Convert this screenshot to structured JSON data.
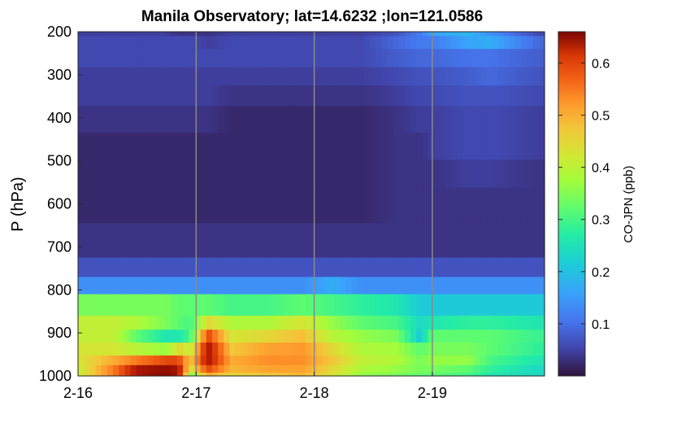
{
  "chart_data": {
    "type": "heatmap",
    "title": "Manila Observatory; lat=14.6232 ;lon=121.0586",
    "xlabel": "",
    "ylabel": "P (hPa)",
    "x_ticks": [
      "2-16",
      "2-17",
      "2-18",
      "2-19"
    ],
    "x_range_days": [
      0,
      3.95
    ],
    "y_ticks": [
      200,
      300,
      400,
      500,
      600,
      700,
      800,
      900,
      1000
    ],
    "ylim": [
      200,
      1000
    ],
    "y_reversed": true,
    "grid": "vertical lines at day ticks",
    "colorbar": {
      "label": "CO-JPN (ppb)",
      "ticks": [
        0.1,
        0.2,
        0.3,
        0.4,
        0.5,
        0.6
      ],
      "range": [
        0,
        0.66
      ],
      "colormap": "turbo"
    },
    "pressure_levels": [
      200,
      220,
      260,
      305,
      345,
      400,
      470,
      525,
      600,
      690,
      760,
      780,
      840,
      880,
      905,
      940,
      965,
      985,
      1000
    ],
    "profiles": [
      {
        "time": 0.0,
        "values": [
          0.04,
          0.05,
          0.05,
          0.04,
          0.04,
          0.03,
          0.02,
          0.02,
          0.02,
          0.03,
          0.06,
          0.12,
          0.3,
          0.36,
          0.36,
          0.38,
          0.38,
          0.36,
          0.36
        ]
      },
      {
        "time": 0.3,
        "values": [
          0.04,
          0.05,
          0.05,
          0.04,
          0.04,
          0.03,
          0.02,
          0.02,
          0.02,
          0.03,
          0.06,
          0.12,
          0.3,
          0.36,
          0.36,
          0.38,
          0.45,
          0.5,
          0.5
        ]
      },
      {
        "time": 0.5,
        "values": [
          0.04,
          0.05,
          0.05,
          0.04,
          0.04,
          0.03,
          0.02,
          0.02,
          0.02,
          0.03,
          0.06,
          0.12,
          0.3,
          0.34,
          0.28,
          0.35,
          0.5,
          0.62,
          0.62
        ]
      },
      {
        "time": 0.75,
        "values": [
          0.04,
          0.05,
          0.05,
          0.04,
          0.04,
          0.03,
          0.02,
          0.02,
          0.02,
          0.03,
          0.06,
          0.12,
          0.3,
          0.3,
          0.22,
          0.32,
          0.55,
          0.64,
          0.65
        ]
      },
      {
        "time": 0.85,
        "values": [
          0.03,
          0.05,
          0.05,
          0.04,
          0.04,
          0.03,
          0.02,
          0.02,
          0.02,
          0.03,
          0.06,
          0.12,
          0.28,
          0.28,
          0.22,
          0.4,
          0.55,
          0.62,
          0.62
        ]
      },
      {
        "time": 0.95,
        "values": [
          0.03,
          0.05,
          0.05,
          0.04,
          0.04,
          0.03,
          0.02,
          0.02,
          0.02,
          0.03,
          0.06,
          0.12,
          0.28,
          0.26,
          0.26,
          0.36,
          0.42,
          0.38,
          0.3
        ]
      },
      {
        "time": 1.1,
        "values": [
          0.03,
          0.04,
          0.05,
          0.04,
          0.04,
          0.03,
          0.02,
          0.02,
          0.02,
          0.03,
          0.06,
          0.12,
          0.28,
          0.4,
          0.55,
          0.62,
          0.62,
          0.55,
          0.45
        ]
      },
      {
        "time": 1.3,
        "values": [
          0.04,
          0.05,
          0.05,
          0.04,
          0.03,
          0.02,
          0.02,
          0.02,
          0.02,
          0.03,
          0.06,
          0.12,
          0.26,
          0.34,
          0.38,
          0.42,
          0.45,
          0.44,
          0.4
        ]
      },
      {
        "time": 1.6,
        "values": [
          0.04,
          0.05,
          0.05,
          0.04,
          0.03,
          0.02,
          0.02,
          0.02,
          0.02,
          0.03,
          0.06,
          0.12,
          0.26,
          0.34,
          0.4,
          0.46,
          0.48,
          0.46,
          0.42
        ]
      },
      {
        "time": 1.9,
        "values": [
          0.04,
          0.05,
          0.05,
          0.04,
          0.03,
          0.02,
          0.02,
          0.02,
          0.02,
          0.03,
          0.06,
          0.12,
          0.28,
          0.38,
          0.43,
          0.47,
          0.48,
          0.46,
          0.44
        ]
      },
      {
        "time": 2.15,
        "values": [
          0.04,
          0.05,
          0.05,
          0.04,
          0.03,
          0.02,
          0.02,
          0.02,
          0.02,
          0.03,
          0.06,
          0.15,
          0.26,
          0.32,
          0.35,
          0.4,
          0.42,
          0.4,
          0.38
        ]
      },
      {
        "time": 2.4,
        "values": [
          0.04,
          0.05,
          0.05,
          0.04,
          0.03,
          0.02,
          0.02,
          0.02,
          0.02,
          0.03,
          0.06,
          0.12,
          0.24,
          0.28,
          0.32,
          0.34,
          0.36,
          0.34,
          0.32
        ]
      },
      {
        "time": 2.7,
        "values": [
          0.06,
          0.08,
          0.07,
          0.05,
          0.04,
          0.03,
          0.03,
          0.03,
          0.03,
          0.03,
          0.06,
          0.12,
          0.22,
          0.26,
          0.3,
          0.33,
          0.34,
          0.32,
          0.3
        ]
      },
      {
        "time": 2.9,
        "values": [
          0.1,
          0.1,
          0.08,
          0.06,
          0.05,
          0.04,
          0.03,
          0.03,
          0.03,
          0.03,
          0.06,
          0.12,
          0.18,
          0.2,
          0.18,
          0.28,
          0.3,
          0.3,
          0.28
        ]
      },
      {
        "time": 3.0,
        "values": [
          0.14,
          0.1,
          0.08,
          0.06,
          0.05,
          0.04,
          0.04,
          0.03,
          0.03,
          0.03,
          0.06,
          0.12,
          0.18,
          0.22,
          0.28,
          0.3,
          0.32,
          0.3,
          0.28
        ]
      },
      {
        "time": 3.3,
        "values": [
          0.16,
          0.14,
          0.09,
          0.07,
          0.06,
          0.05,
          0.05,
          0.04,
          0.03,
          0.03,
          0.06,
          0.12,
          0.18,
          0.24,
          0.28,
          0.3,
          0.32,
          0.28,
          0.26
        ]
      },
      {
        "time": 3.5,
        "values": [
          0.12,
          0.15,
          0.09,
          0.08,
          0.06,
          0.05,
          0.05,
          0.04,
          0.03,
          0.03,
          0.06,
          0.12,
          0.18,
          0.24,
          0.28,
          0.28,
          0.26,
          0.24,
          0.22
        ]
      },
      {
        "time": 3.9,
        "values": [
          0.05,
          0.08,
          0.07,
          0.06,
          0.05,
          0.04,
          0.04,
          0.03,
          0.03,
          0.03,
          0.06,
          0.12,
          0.18,
          0.22,
          0.25,
          0.24,
          0.22,
          0.2,
          0.2
        ]
      }
    ]
  }
}
